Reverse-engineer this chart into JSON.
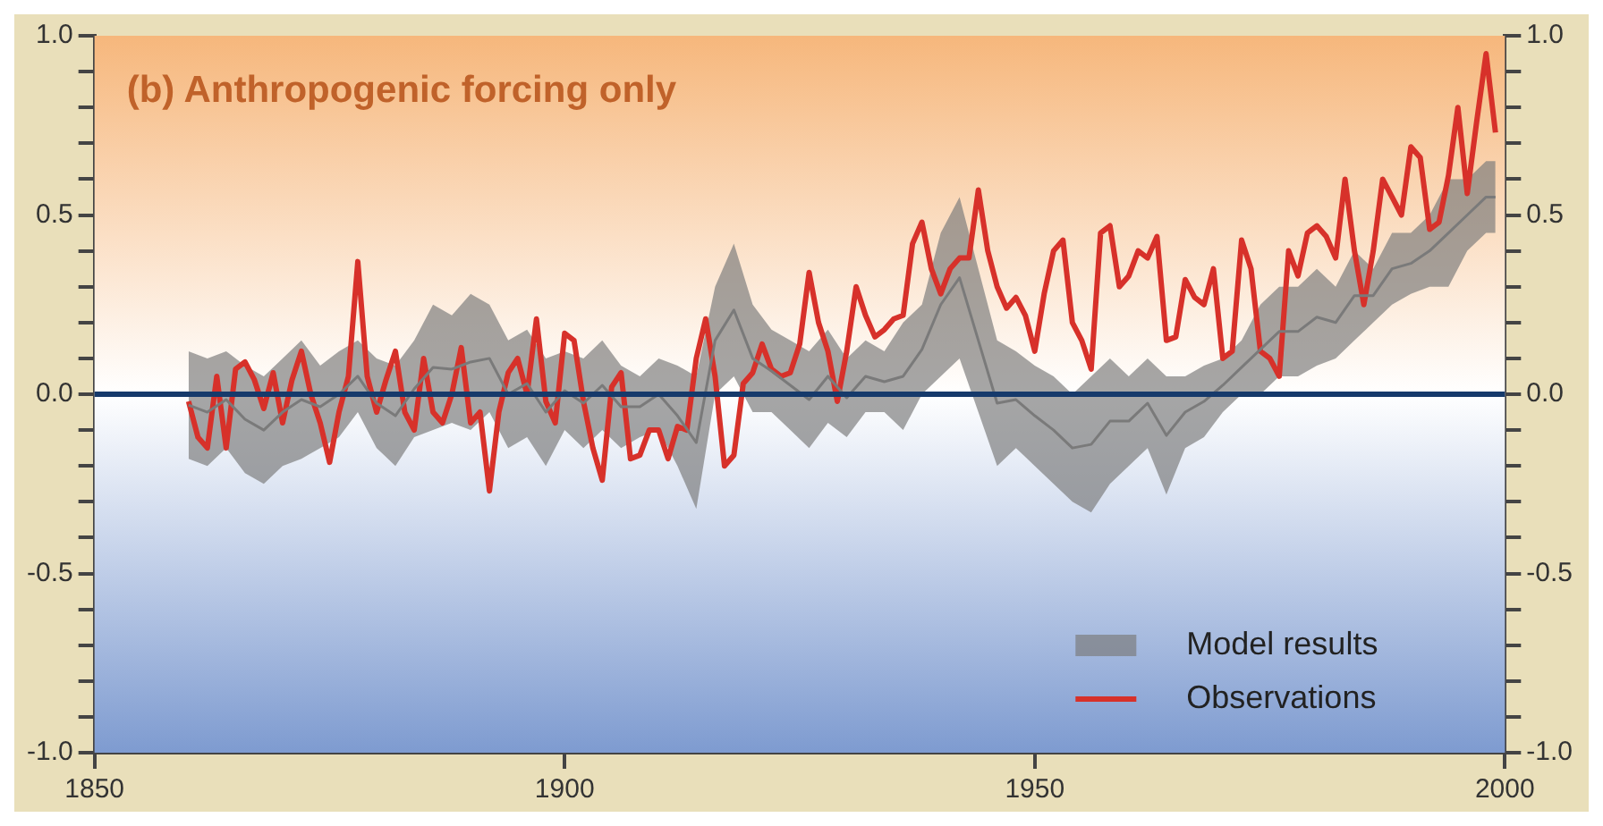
{
  "chart_data": {
    "type": "line",
    "title": "(b) Anthropogenic forcing only",
    "xlim": [
      1850,
      2000
    ],
    "xticks": [
      1850,
      1900,
      1950,
      2000
    ],
    "ylim": [
      -1,
      1
    ],
    "yticks": [
      {
        "value": -1,
        "label": "-1.0"
      },
      {
        "value": -0.9,
        "label": null
      },
      {
        "value": -0.8,
        "label": null
      },
      {
        "value": -0.7,
        "label": null
      },
      {
        "value": -0.6,
        "label": null
      },
      {
        "value": -0.5,
        "label": "-0.5"
      },
      {
        "value": -0.4,
        "label": null
      },
      {
        "value": -0.3,
        "label": null
      },
      {
        "value": -0.2,
        "label": null
      },
      {
        "value": -0.1,
        "label": null
      },
      {
        "value": 0,
        "label": "0.0"
      },
      {
        "value": 0.1,
        "label": null
      },
      {
        "value": 0.2,
        "label": null
      },
      {
        "value": 0.3,
        "label": null
      },
      {
        "value": 0.4,
        "label": null
      },
      {
        "value": 0.5,
        "label": "0.5"
      },
      {
        "value": 0.6,
        "label": null
      },
      {
        "value": 0.7,
        "label": null
      },
      {
        "value": 0.8,
        "label": null
      },
      {
        "value": 0.9,
        "label": null
      },
      {
        "value": 1,
        "label": "1.0"
      }
    ],
    "y2lim": [
      -1,
      1
    ],
    "y2ticks": [
      {
        "value": -1,
        "label": "-1.0"
      },
      {
        "value": -0.9,
        "label": null
      },
      {
        "value": -0.8,
        "label": null
      },
      {
        "value": -0.7,
        "label": null
      },
      {
        "value": -0.6,
        "label": null
      },
      {
        "value": -0.5,
        "label": "-0.5"
      },
      {
        "value": -0.4,
        "label": null
      },
      {
        "value": -0.3,
        "label": null
      },
      {
        "value": -0.2,
        "label": null
      },
      {
        "value": -0.1,
        "label": null
      },
      {
        "value": 0,
        "label": "0.0"
      },
      {
        "value": 0.1,
        "label": null
      },
      {
        "value": 0.2,
        "label": null
      },
      {
        "value": 0.3,
        "label": null
      },
      {
        "value": 0.4,
        "label": null
      },
      {
        "value": 0.5,
        "label": "0.5"
      },
      {
        "value": 0.6,
        "label": null
      },
      {
        "value": 0.7,
        "label": null
      },
      {
        "value": 0.8,
        "label": null
      },
      {
        "value": 0.9,
        "label": null
      },
      {
        "value": 1,
        "label": "1.0"
      }
    ],
    "legend": "bottom right",
    "marker": "none",
    "ref_lines": [
      {
        "axis": "y",
        "value": 0,
        "color": "#163a6b"
      }
    ],
    "series": [
      {
        "name": "Model results",
        "type": "line",
        "color": "#7a7a7a",
        "x": [
          1860,
          1862,
          1864,
          1866,
          1868,
          1870,
          1872,
          1874,
          1876,
          1878,
          1880,
          1882,
          1884,
          1886,
          1888,
          1890,
          1892,
          1894,
          1896,
          1898,
          1900,
          1902,
          1904,
          1906,
          1908,
          1910,
          1912,
          1914,
          1916,
          1918,
          1920,
          1922,
          1924,
          1926,
          1928,
          1930,
          1932,
          1934,
          1936,
          1938,
          1940,
          1942,
          1944,
          1946,
          1948,
          1950,
          1952,
          1954,
          1956,
          1958,
          1960,
          1962,
          1964,
          1966,
          1968,
          1970,
          1972,
          1974,
          1976,
          1978,
          1980,
          1982,
          1984,
          1986,
          1988,
          1990,
          1992,
          1994,
          1996,
          1998,
          1999
        ],
        "values": [
          -0.03,
          -0.05,
          -0.015,
          -0.07,
          -0.1,
          -0.05,
          -0.015,
          -0.035,
          0.0,
          0.05,
          -0.025,
          -0.06,
          0.015,
          0.075,
          0.07,
          0.09,
          0.1,
          0.0,
          0.03,
          -0.05,
          0.01,
          -0.025,
          0.025,
          -0.035,
          -0.035,
          0.0,
          -0.06,
          -0.135,
          0.15,
          0.235,
          0.1,
          0.065,
          0.025,
          -0.015,
          0.05,
          -0.01,
          0.05,
          0.035,
          0.05,
          0.125,
          0.25,
          0.325,
          0.15,
          -0.025,
          -0.015,
          -0.06,
          -0.1,
          -0.15,
          -0.14,
          -0.075,
          -0.075,
          -0.025,
          -0.115,
          -0.05,
          -0.02,
          0.025,
          0.075,
          0.125,
          0.175,
          0.175,
          0.215,
          0.2,
          0.275,
          0.275,
          0.35,
          0.365,
          0.4,
          0.45,
          0.5,
          0.55,
          0.55
        ],
        "lower": [
          -0.18,
          -0.2,
          -0.15,
          -0.22,
          -0.25,
          -0.2,
          -0.18,
          -0.15,
          -0.12,
          -0.05,
          -0.15,
          -0.2,
          -0.12,
          -0.1,
          -0.08,
          -0.1,
          -0.05,
          -0.15,
          -0.12,
          -0.2,
          -0.1,
          -0.15,
          -0.1,
          -0.15,
          -0.12,
          -0.1,
          -0.2,
          -0.32,
          0.0,
          0.05,
          -0.05,
          -0.05,
          -0.1,
          -0.15,
          -0.08,
          -0.12,
          -0.05,
          -0.05,
          -0.1,
          0.0,
          0.05,
          0.1,
          -0.05,
          -0.2,
          -0.15,
          -0.2,
          -0.25,
          -0.3,
          -0.33,
          -0.25,
          -0.2,
          -0.15,
          -0.28,
          -0.15,
          -0.12,
          -0.05,
          0.0,
          0.0,
          0.05,
          0.05,
          0.08,
          0.1,
          0.15,
          0.2,
          0.25,
          0.28,
          0.3,
          0.3,
          0.4,
          0.45,
          0.45
        ],
        "upper": [
          0.12,
          0.1,
          0.12,
          0.08,
          0.05,
          0.1,
          0.15,
          0.08,
          0.12,
          0.15,
          0.1,
          0.08,
          0.15,
          0.25,
          0.22,
          0.28,
          0.25,
          0.15,
          0.18,
          0.1,
          0.12,
          0.1,
          0.15,
          0.08,
          0.05,
          0.1,
          0.08,
          0.05,
          0.3,
          0.42,
          0.25,
          0.18,
          0.15,
          0.12,
          0.18,
          0.1,
          0.15,
          0.12,
          0.2,
          0.25,
          0.45,
          0.55,
          0.35,
          0.15,
          0.12,
          0.08,
          0.05,
          0.0,
          0.05,
          0.1,
          0.05,
          0.1,
          0.05,
          0.05,
          0.08,
          0.1,
          0.15,
          0.25,
          0.3,
          0.3,
          0.35,
          0.3,
          0.4,
          0.35,
          0.45,
          0.45,
          0.5,
          0.6,
          0.6,
          0.65,
          0.65
        ]
      },
      {
        "name": "Observations",
        "type": "line",
        "color": "#d7312a",
        "x": [
          1860,
          1861,
          1862,
          1863,
          1864,
          1865,
          1866,
          1867,
          1868,
          1869,
          1870,
          1871,
          1872,
          1873,
          1874,
          1875,
          1876,
          1877,
          1878,
          1879,
          1880,
          1881,
          1882,
          1883,
          1884,
          1885,
          1886,
          1887,
          1888,
          1889,
          1890,
          1891,
          1892,
          1893,
          1894,
          1895,
          1896,
          1897,
          1898,
          1899,
          1900,
          1901,
          1902,
          1903,
          1904,
          1905,
          1906,
          1907,
          1908,
          1909,
          1910,
          1911,
          1912,
          1913,
          1914,
          1915,
          1916,
          1917,
          1918,
          1919,
          1920,
          1921,
          1922,
          1923,
          1924,
          1925,
          1926,
          1927,
          1928,
          1929,
          1930,
          1931,
          1932,
          1933,
          1934,
          1935,
          1936,
          1937,
          1938,
          1939,
          1940,
          1941,
          1942,
          1943,
          1944,
          1945,
          1946,
          1947,
          1948,
          1949,
          1950,
          1951,
          1952,
          1953,
          1954,
          1955,
          1956,
          1957,
          1958,
          1959,
          1960,
          1961,
          1962,
          1963,
          1964,
          1965,
          1966,
          1967,
          1968,
          1969,
          1970,
          1971,
          1972,
          1973,
          1974,
          1975,
          1976,
          1977,
          1978,
          1979,
          1980,
          1981,
          1982,
          1983,
          1984,
          1985,
          1986,
          1987,
          1988,
          1989,
          1990,
          1991,
          1992,
          1993,
          1994,
          1995,
          1996,
          1997,
          1998,
          1999
        ],
        "values": [
          -0.02,
          -0.12,
          -0.15,
          0.05,
          -0.15,
          0.07,
          0.09,
          0.04,
          -0.04,
          0.06,
          -0.08,
          0.04,
          0.12,
          0.0,
          -0.08,
          -0.19,
          -0.05,
          0.05,
          0.37,
          0.05,
          -0.05,
          0.04,
          0.12,
          -0.05,
          -0.1,
          0.1,
          -0.05,
          -0.08,
          0.0,
          0.13,
          -0.08,
          -0.05,
          -0.27,
          -0.05,
          0.06,
          0.1,
          0.0,
          0.21,
          -0.02,
          -0.08,
          0.17,
          0.15,
          -0.02,
          -0.15,
          -0.24,
          0.02,
          0.06,
          -0.18,
          -0.17,
          -0.1,
          -0.1,
          -0.18,
          -0.09,
          -0.1,
          0.1,
          0.21,
          0.05,
          -0.2,
          -0.17,
          0.03,
          0.06,
          0.14,
          0.07,
          0.05,
          0.06,
          0.14,
          0.34,
          0.2,
          0.12,
          -0.02,
          0.12,
          0.3,
          0.22,
          0.16,
          0.18,
          0.21,
          0.22,
          0.42,
          0.48,
          0.35,
          0.28,
          0.35,
          0.38,
          0.38,
          0.57,
          0.4,
          0.3,
          0.24,
          0.27,
          0.22,
          0.12,
          0.28,
          0.4,
          0.43,
          0.2,
          0.15,
          0.07,
          0.45,
          0.47,
          0.3,
          0.33,
          0.4,
          0.38,
          0.44,
          0.15,
          0.16,
          0.32,
          0.27,
          0.25,
          0.35,
          0.1,
          0.12,
          0.43,
          0.35,
          0.12,
          0.1,
          0.05,
          0.4,
          0.33,
          0.45,
          0.47,
          0.44,
          0.38,
          0.6,
          0.4,
          0.25,
          0.4,
          0.6,
          0.55,
          0.5,
          0.69,
          0.66,
          0.46,
          0.48,
          0.61,
          0.8,
          0.56,
          0.76,
          0.95,
          0.73
        ]
      }
    ]
  }
}
